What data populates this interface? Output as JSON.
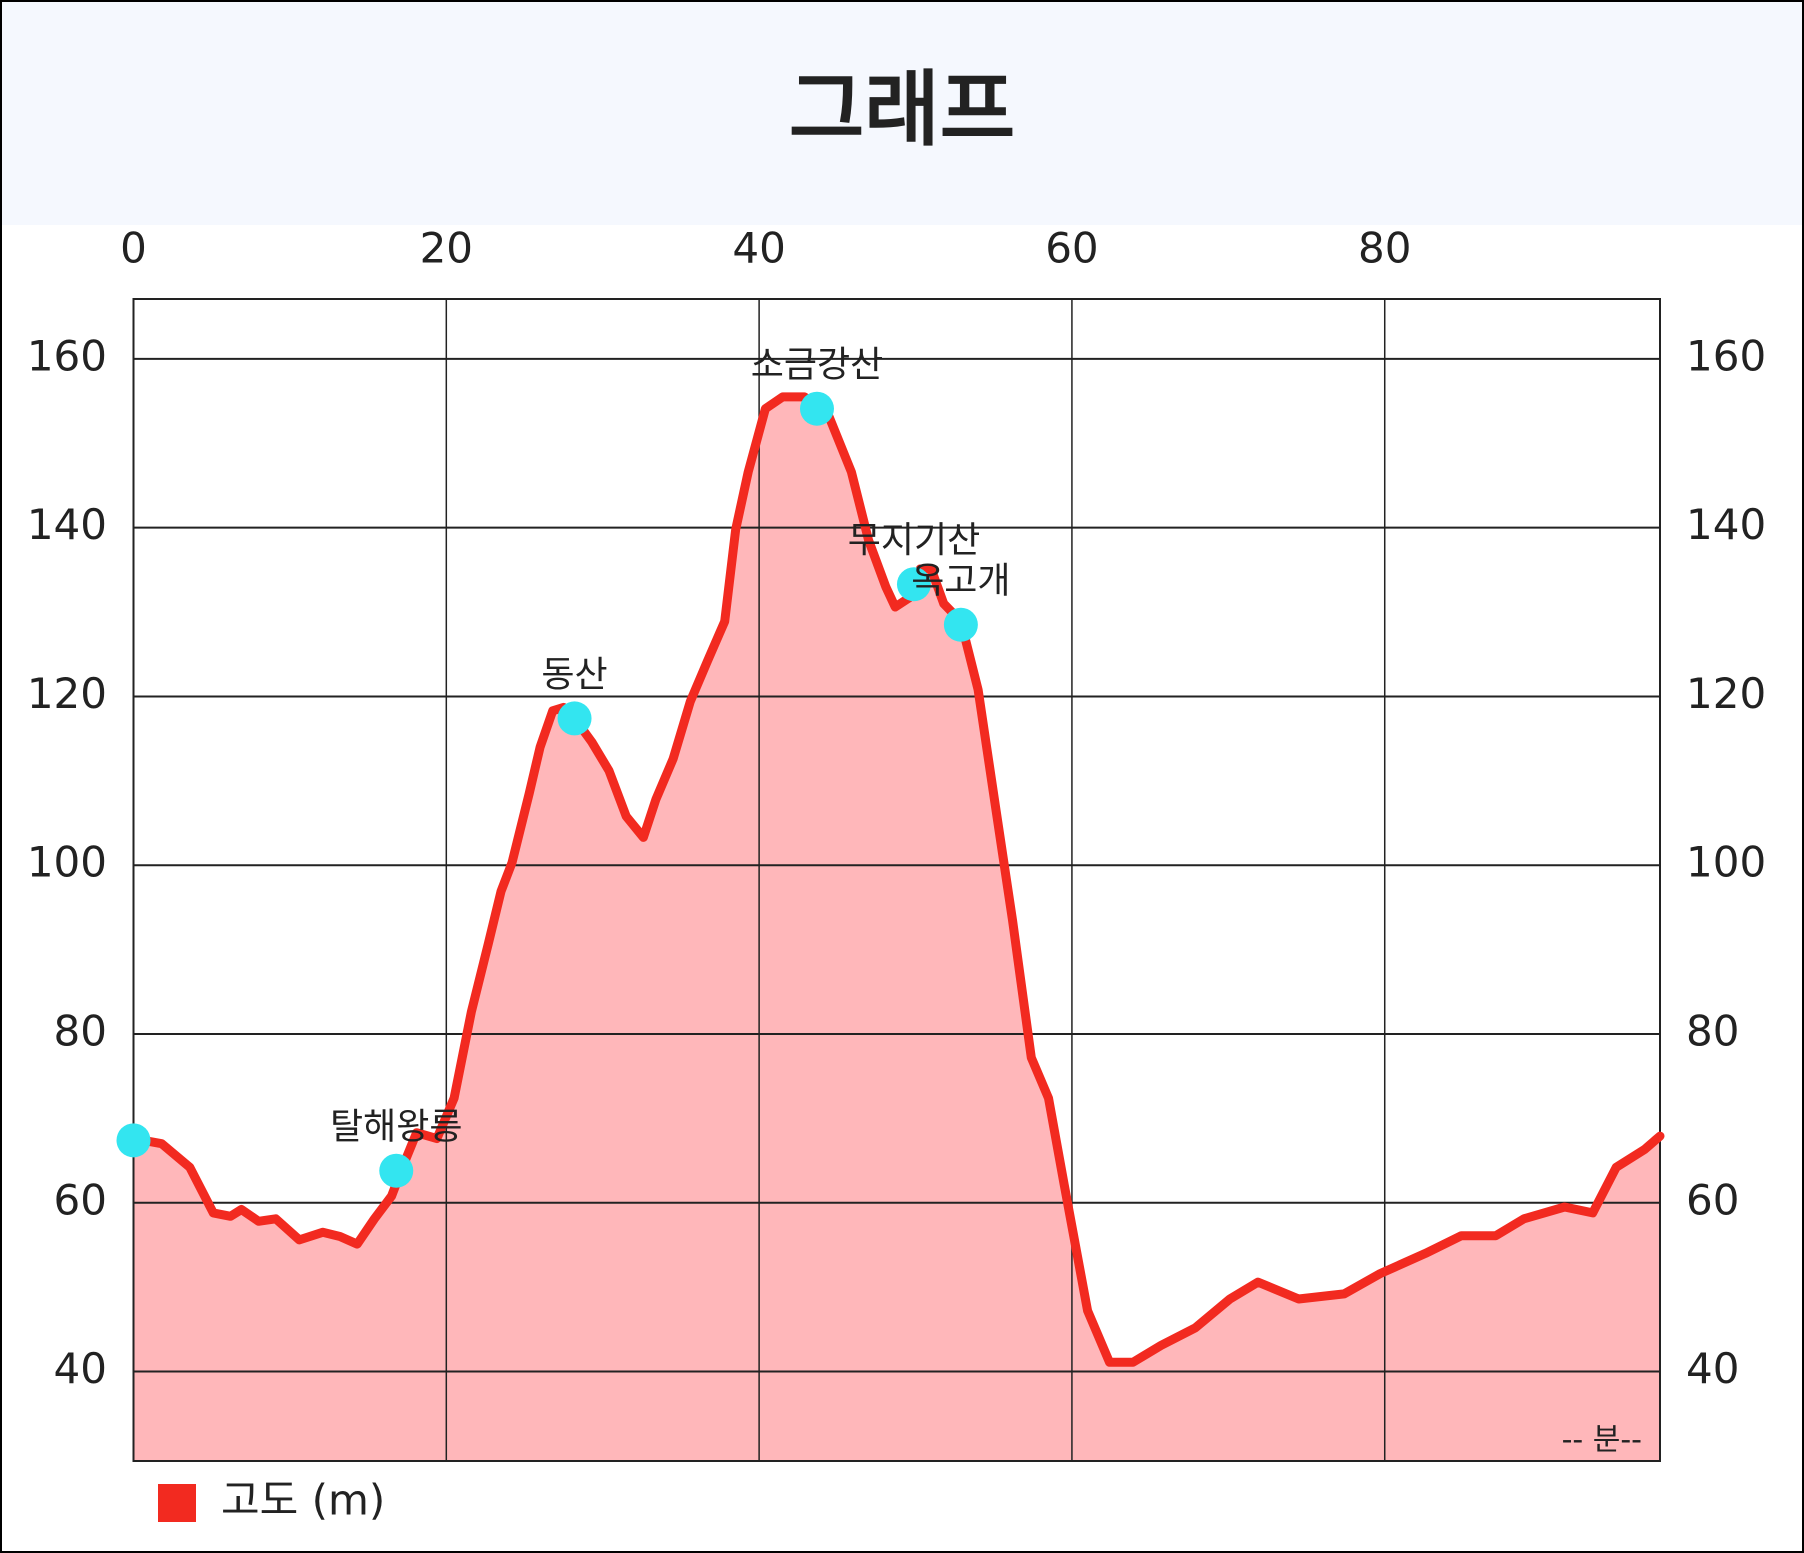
{
  "chart_data": {
    "type": "area",
    "title": "그래프",
    "xlabel": "-- 분--",
    "xlim": [
      0,
      97.6
    ],
    "ylim": [
      29.4,
      167.1
    ],
    "xticks": [
      0,
      20,
      40,
      60,
      80
    ],
    "yticks": [
      40,
      60,
      80,
      100,
      120,
      140,
      160
    ],
    "grid": true,
    "legend": "bottom-left",
    "x": [
      0,
      1.8,
      3.6,
      5.1,
      6.2,
      6.9,
      8,
      9.1,
      10.6,
      12.1,
      13.2,
      14.3,
      15.4,
      16.5,
      17.2,
      18.1,
      19.4,
      20.5,
      21.6,
      22.7,
      23.5,
      24.2,
      25.3,
      26,
      26.8,
      27.5,
      28.2,
      29.3,
      30.4,
      31.5,
      32.6,
      33.4,
      34.5,
      35.6,
      36.7,
      37.8,
      38.5,
      39.3,
      40.4,
      41.5,
      42.9,
      44.4,
      45.9,
      47,
      48.1,
      48.7,
      49.6,
      50.3,
      51,
      51.8,
      52.9,
      54,
      55.1,
      56.2,
      57.4,
      58.5,
      59.5,
      61,
      62.4,
      63.9,
      65.7,
      67.9,
      70.1,
      71.9,
      74.5,
      77.4,
      79.7,
      82.6,
      84.9,
      87.1,
      88.9,
      91.5,
      93.3,
      94.8,
      96.6,
      97.6
    ],
    "series": [
      {
        "name": "고도 (m)",
        "color": "#f22a20",
        "fill": "#ffb7ba",
        "values": [
          67.6,
          67,
          64.2,
          58.8,
          58.4,
          59.2,
          57.8,
          58.1,
          55.6,
          56.5,
          56,
          55.1,
          58.1,
          60.8,
          64.2,
          68.3,
          67.6,
          72.4,
          82.6,
          90.8,
          96.9,
          100.3,
          108.5,
          114,
          118.3,
          118.7,
          117.4,
          114.6,
          111.2,
          105.8,
          103.3,
          107.8,
          112.6,
          119.4,
          124.2,
          128.9,
          139.8,
          146.6,
          154.1,
          155.5,
          155.5,
          153.5,
          146.6,
          138.5,
          133,
          130.6,
          131.7,
          135.1,
          135.1,
          131,
          128.9,
          120.8,
          107.1,
          93.5,
          77.2,
          72.4,
          62.2,
          47.2,
          41.1,
          41.1,
          43.1,
          45.2,
          48.6,
          50.6,
          48.6,
          49.2,
          51.6,
          54,
          56.1,
          56.1,
          58.1,
          59.5,
          58.8,
          64.2,
          66.3,
          67.9
        ]
      }
    ],
    "markers": {
      "color": "#33e5f0",
      "points": [
        {
          "name": null,
          "x": 0,
          "y": 67.4
        },
        {
          "name": "탈해왕릉",
          "x": 16.8,
          "y": 63.8
        },
        {
          "name": "동산",
          "x": 28.2,
          "y": 117.4
        },
        {
          "name": "소금강산",
          "x": 43.7,
          "y": 154.1
        },
        {
          "name": "무지기산",
          "x": 49.9,
          "y": 133.3
        },
        {
          "name": "옥고개",
          "x": 52.9,
          "y": 128.5
        }
      ]
    }
  }
}
